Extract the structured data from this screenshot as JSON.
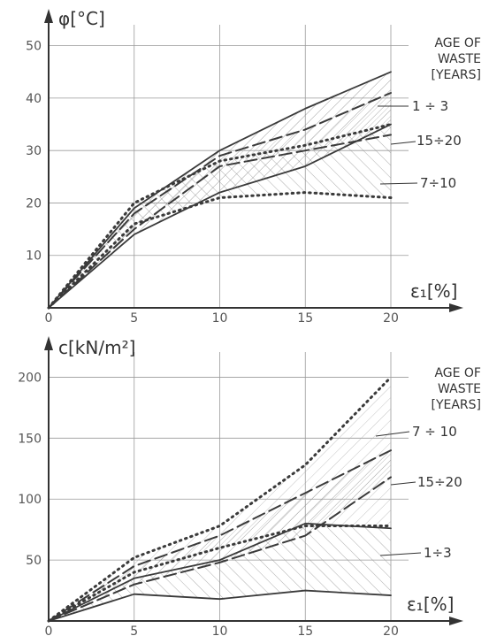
{
  "chart_data": [
    {
      "type": "line",
      "ylabel": "φ[°C]",
      "xlabel": "ε₁[%]",
      "xlim": [
        0,
        20
      ],
      "ylim": [
        0,
        55
      ],
      "x_ticks": [
        "0",
        "5",
        "10",
        "15",
        "20"
      ],
      "y_ticks": [
        "10",
        "20",
        "30",
        "40",
        "50"
      ],
      "grid": true,
      "legend_title": [
        "AGE OF",
        "WASTE",
        "[YEARS]"
      ],
      "annotations": [
        "1 ÷ 3",
        "15÷20",
        "7÷10"
      ],
      "series": [
        {
          "name": "1 ÷ 3",
          "style": "solid",
          "role": "upper",
          "x": [
            0,
            5,
            10,
            15,
            20
          ],
          "y": [
            0,
            19,
            30,
            38,
            45
          ]
        },
        {
          "name": "1 ÷ 3",
          "style": "solid",
          "role": "lower",
          "x": [
            0,
            5,
            10,
            15,
            20
          ],
          "y": [
            0,
            14,
            22,
            27,
            35
          ]
        },
        {
          "name": "15÷20",
          "style": "dashed",
          "role": "upper",
          "x": [
            0,
            5,
            10,
            15,
            20
          ],
          "y": [
            0,
            18,
            29,
            34,
            41
          ]
        },
        {
          "name": "15÷20",
          "style": "dashed",
          "role": "lower",
          "x": [
            0,
            5,
            10,
            15,
            20
          ],
          "y": [
            0,
            15,
            27,
            30,
            33
          ]
        },
        {
          "name": "7÷10",
          "style": "dotted",
          "role": "upper",
          "x": [
            0,
            5,
            10,
            15,
            20
          ],
          "y": [
            0,
            20,
            28,
            31,
            35
          ]
        },
        {
          "name": "7÷10",
          "style": "dotted",
          "role": "lower",
          "x": [
            0,
            5,
            10,
            15,
            20
          ],
          "y": [
            0,
            16,
            21,
            22,
            21
          ]
        }
      ]
    },
    {
      "type": "line",
      "ylabel": "c[kN/m²]",
      "xlabel": "ε₁[%]",
      "xlim": [
        0,
        20
      ],
      "ylim": [
        0,
        225
      ],
      "x_ticks": [
        "0",
        "5",
        "10",
        "15",
        "20"
      ],
      "y_ticks": [
        "50",
        "100",
        "150",
        "200"
      ],
      "grid": true,
      "legend_title": [
        "AGE OF",
        "WASTE",
        "[YEARS]"
      ],
      "annotations": [
        "7 ÷ 10",
        "15÷20",
        "1÷3"
      ],
      "series": [
        {
          "name": "7 ÷ 10",
          "style": "dotted",
          "role": "upper",
          "x": [
            0,
            5,
            10,
            15,
            20
          ],
          "y": [
            0,
            52,
            78,
            128,
            200
          ]
        },
        {
          "name": "7 ÷ 10",
          "style": "dotted",
          "role": "lower",
          "x": [
            0,
            5,
            10,
            15,
            20
          ],
          "y": [
            0,
            40,
            60,
            78,
            78
          ]
        },
        {
          "name": "15÷20",
          "style": "dashed",
          "role": "upper",
          "x": [
            0,
            5,
            10,
            15,
            20
          ],
          "y": [
            0,
            45,
            70,
            105,
            140
          ]
        },
        {
          "name": "15÷20",
          "style": "dashed",
          "role": "lower",
          "x": [
            0,
            5,
            10,
            15,
            20
          ],
          "y": [
            0,
            30,
            48,
            70,
            118
          ]
        },
        {
          "name": "1÷3",
          "style": "solid",
          "role": "upper",
          "x": [
            0,
            5,
            10,
            15,
            20
          ],
          "y": [
            0,
            35,
            50,
            80,
            76
          ]
        },
        {
          "name": "1÷3",
          "style": "solid",
          "role": "lower",
          "x": [
            0,
            5,
            10,
            15,
            20
          ],
          "y": [
            0,
            22,
            18,
            25,
            21
          ]
        }
      ]
    }
  ]
}
